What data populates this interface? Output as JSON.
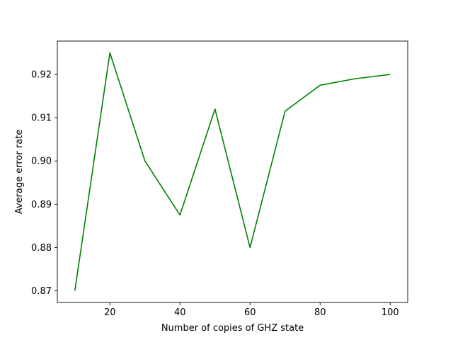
{
  "chart_data": {
    "type": "line",
    "title": "",
    "xlabel": "Number of copies of GHZ state",
    "ylabel": "Average error rate",
    "xlim": [
      5,
      105
    ],
    "ylim": [
      0.8673,
      0.9277
    ],
    "x_ticks": [
      20,
      40,
      60,
      80,
      100
    ],
    "x_tick_labels": [
      "20",
      "40",
      "60",
      "80",
      "100"
    ],
    "y_ticks": [
      0.87,
      0.88,
      0.89,
      0.9,
      0.91,
      0.92
    ],
    "y_tick_labels": [
      "0.87",
      "0.88",
      "0.89",
      "0.90",
      "0.91",
      "0.92"
    ],
    "grid": false,
    "legend": "none",
    "series": [
      {
        "color": "#008000",
        "x": [
          10,
          20,
          30,
          40,
          50,
          60,
          70,
          80,
          90,
          100
        ],
        "y": [
          0.87,
          0.925,
          0.9,
          0.8875,
          0.912,
          0.88,
          0.9115,
          0.9175,
          0.919,
          0.92
        ]
      }
    ]
  }
}
